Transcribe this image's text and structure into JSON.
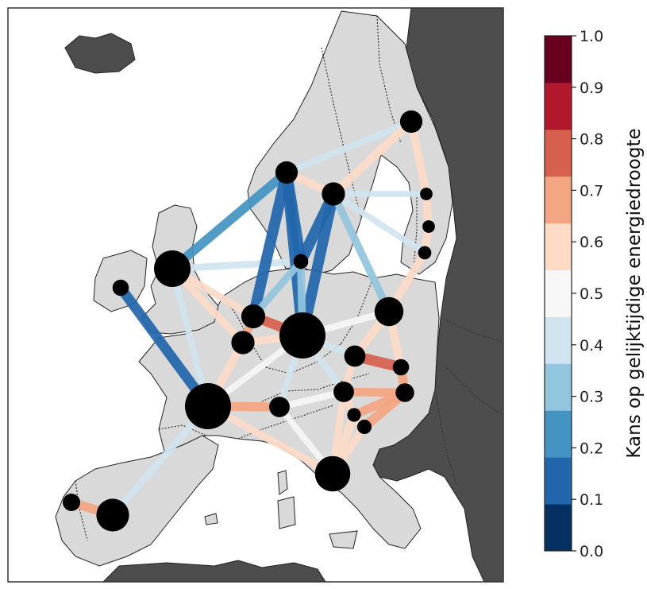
{
  "colorbar": {
    "label": "Kans op gelijktijdige energiedroogte",
    "ticks": [
      "0.0",
      "0.1",
      "0.2",
      "0.3",
      "0.4",
      "0.5",
      "0.6",
      "0.7",
      "0.8",
      "0.9",
      "1.0"
    ],
    "colors": [
      "#053061",
      "#2166ac",
      "#4393c3",
      "#92c5de",
      "#d1e5f0",
      "#f7f7f7",
      "#fddbc7",
      "#f4a582",
      "#d6604d",
      "#b2182b",
      "#67001f"
    ]
  },
  "map_colors": {
    "sea": "#ffffff",
    "study_land": "#d9d9d9",
    "other_land": "#4d4d4d",
    "node": "#000000"
  },
  "regions": [
    {
      "id": "ire",
      "size": 0.22
    },
    {
      "id": "uk",
      "size": 0.75
    },
    {
      "id": "no",
      "size": 0.38
    },
    {
      "id": "se",
      "size": 0.4
    },
    {
      "id": "fi",
      "size": 0.38
    },
    {
      "id": "dk",
      "size": 0.18
    },
    {
      "id": "ee",
      "size": 0.12
    },
    {
      "id": "lv",
      "size": 0.12
    },
    {
      "id": "lt",
      "size": 0.14
    },
    {
      "id": "nl",
      "size": 0.42
    },
    {
      "id": "be",
      "size": 0.4
    },
    {
      "id": "de",
      "size": 1.0
    },
    {
      "id": "pl",
      "size": 0.55
    },
    {
      "id": "cz",
      "size": 0.35
    },
    {
      "id": "sk",
      "size": 0.22
    },
    {
      "id": "at",
      "size": 0.33
    },
    {
      "id": "hu",
      "size": 0.28
    },
    {
      "id": "ch",
      "size": 0.33
    },
    {
      "id": "si",
      "size": 0.15
    },
    {
      "id": "hr",
      "size": 0.17
    },
    {
      "id": "fr",
      "size": 1.0
    },
    {
      "id": "it",
      "size": 0.72
    },
    {
      "id": "pt",
      "size": 0.25
    },
    {
      "id": "es",
      "size": 0.65
    }
  ],
  "links": [
    {
      "a": "ire",
      "b": "fr",
      "p": 0.18
    },
    {
      "a": "uk",
      "b": "no",
      "p": 0.24
    },
    {
      "a": "uk",
      "b": "dk",
      "p": 0.4
    },
    {
      "a": "uk",
      "b": "fr",
      "p": 0.44
    },
    {
      "a": "uk",
      "b": "nl",
      "p": 0.62
    },
    {
      "a": "uk",
      "b": "be",
      "p": 0.62
    },
    {
      "a": "no",
      "b": "dk",
      "p": 0.12
    },
    {
      "a": "no",
      "b": "de",
      "p": 0.14
    },
    {
      "a": "no",
      "b": "nl",
      "p": 0.12
    },
    {
      "a": "no",
      "b": "se",
      "p": 0.68
    },
    {
      "a": "no",
      "b": "fi",
      "p": 0.45
    },
    {
      "a": "se",
      "b": "fi",
      "p": 0.68
    },
    {
      "a": "se",
      "b": "dk",
      "p": 0.12
    },
    {
      "a": "se",
      "b": "de",
      "p": 0.13
    },
    {
      "a": "se",
      "b": "pl",
      "p": 0.35
    },
    {
      "a": "se",
      "b": "lt",
      "p": 0.45
    },
    {
      "a": "se",
      "b": "ee",
      "p": 0.46
    },
    {
      "a": "fi",
      "b": "ee",
      "p": 0.68
    },
    {
      "a": "ee",
      "b": "lv",
      "p": 0.65
    },
    {
      "a": "lv",
      "b": "lt",
      "p": 0.65
    },
    {
      "a": "lt",
      "b": "pl",
      "p": 0.68
    },
    {
      "a": "dk",
      "b": "de",
      "p": 0.35
    },
    {
      "a": "dk",
      "b": "nl",
      "p": 0.38
    },
    {
      "a": "nl",
      "b": "de",
      "p": 0.8
    },
    {
      "a": "nl",
      "b": "be",
      "p": 0.72
    },
    {
      "a": "be",
      "b": "fr",
      "p": 0.68
    },
    {
      "a": "be",
      "b": "de",
      "p": 0.65
    },
    {
      "a": "de",
      "b": "fr",
      "p": 0.55
    },
    {
      "a": "de",
      "b": "pl",
      "p": 0.58
    },
    {
      "a": "de",
      "b": "cz",
      "p": 0.42
    },
    {
      "a": "de",
      "b": "at",
      "p": 0.42
    },
    {
      "a": "de",
      "b": "ch",
      "p": 0.45
    },
    {
      "a": "pl",
      "b": "cz",
      "p": 0.68
    },
    {
      "a": "pl",
      "b": "sk",
      "p": 0.68
    },
    {
      "a": "cz",
      "b": "sk",
      "p": 0.85
    },
    {
      "a": "cz",
      "b": "at",
      "p": 0.6
    },
    {
      "a": "sk",
      "b": "hu",
      "p": 0.75
    },
    {
      "a": "at",
      "b": "hu",
      "p": 0.7
    },
    {
      "a": "at",
      "b": "ch",
      "p": 0.58
    },
    {
      "a": "at",
      "b": "si",
      "p": 0.62
    },
    {
      "a": "at",
      "b": "it",
      "p": 0.6
    },
    {
      "a": "hu",
      "b": "hr",
      "p": 0.78
    },
    {
      "a": "hu",
      "b": "si",
      "p": 0.72
    },
    {
      "a": "si",
      "b": "hr",
      "p": 0.68
    },
    {
      "a": "si",
      "b": "it",
      "p": 0.68
    },
    {
      "a": "hr",
      "b": "it",
      "p": 0.65
    },
    {
      "a": "ch",
      "b": "fr",
      "p": 0.75
    },
    {
      "a": "ch",
      "b": "it",
      "p": 0.55
    },
    {
      "a": "fr",
      "b": "it",
      "p": 0.62
    },
    {
      "a": "fr",
      "b": "es",
      "p": 0.43
    },
    {
      "a": "es",
      "b": "pt",
      "p": 0.75
    }
  ]
}
